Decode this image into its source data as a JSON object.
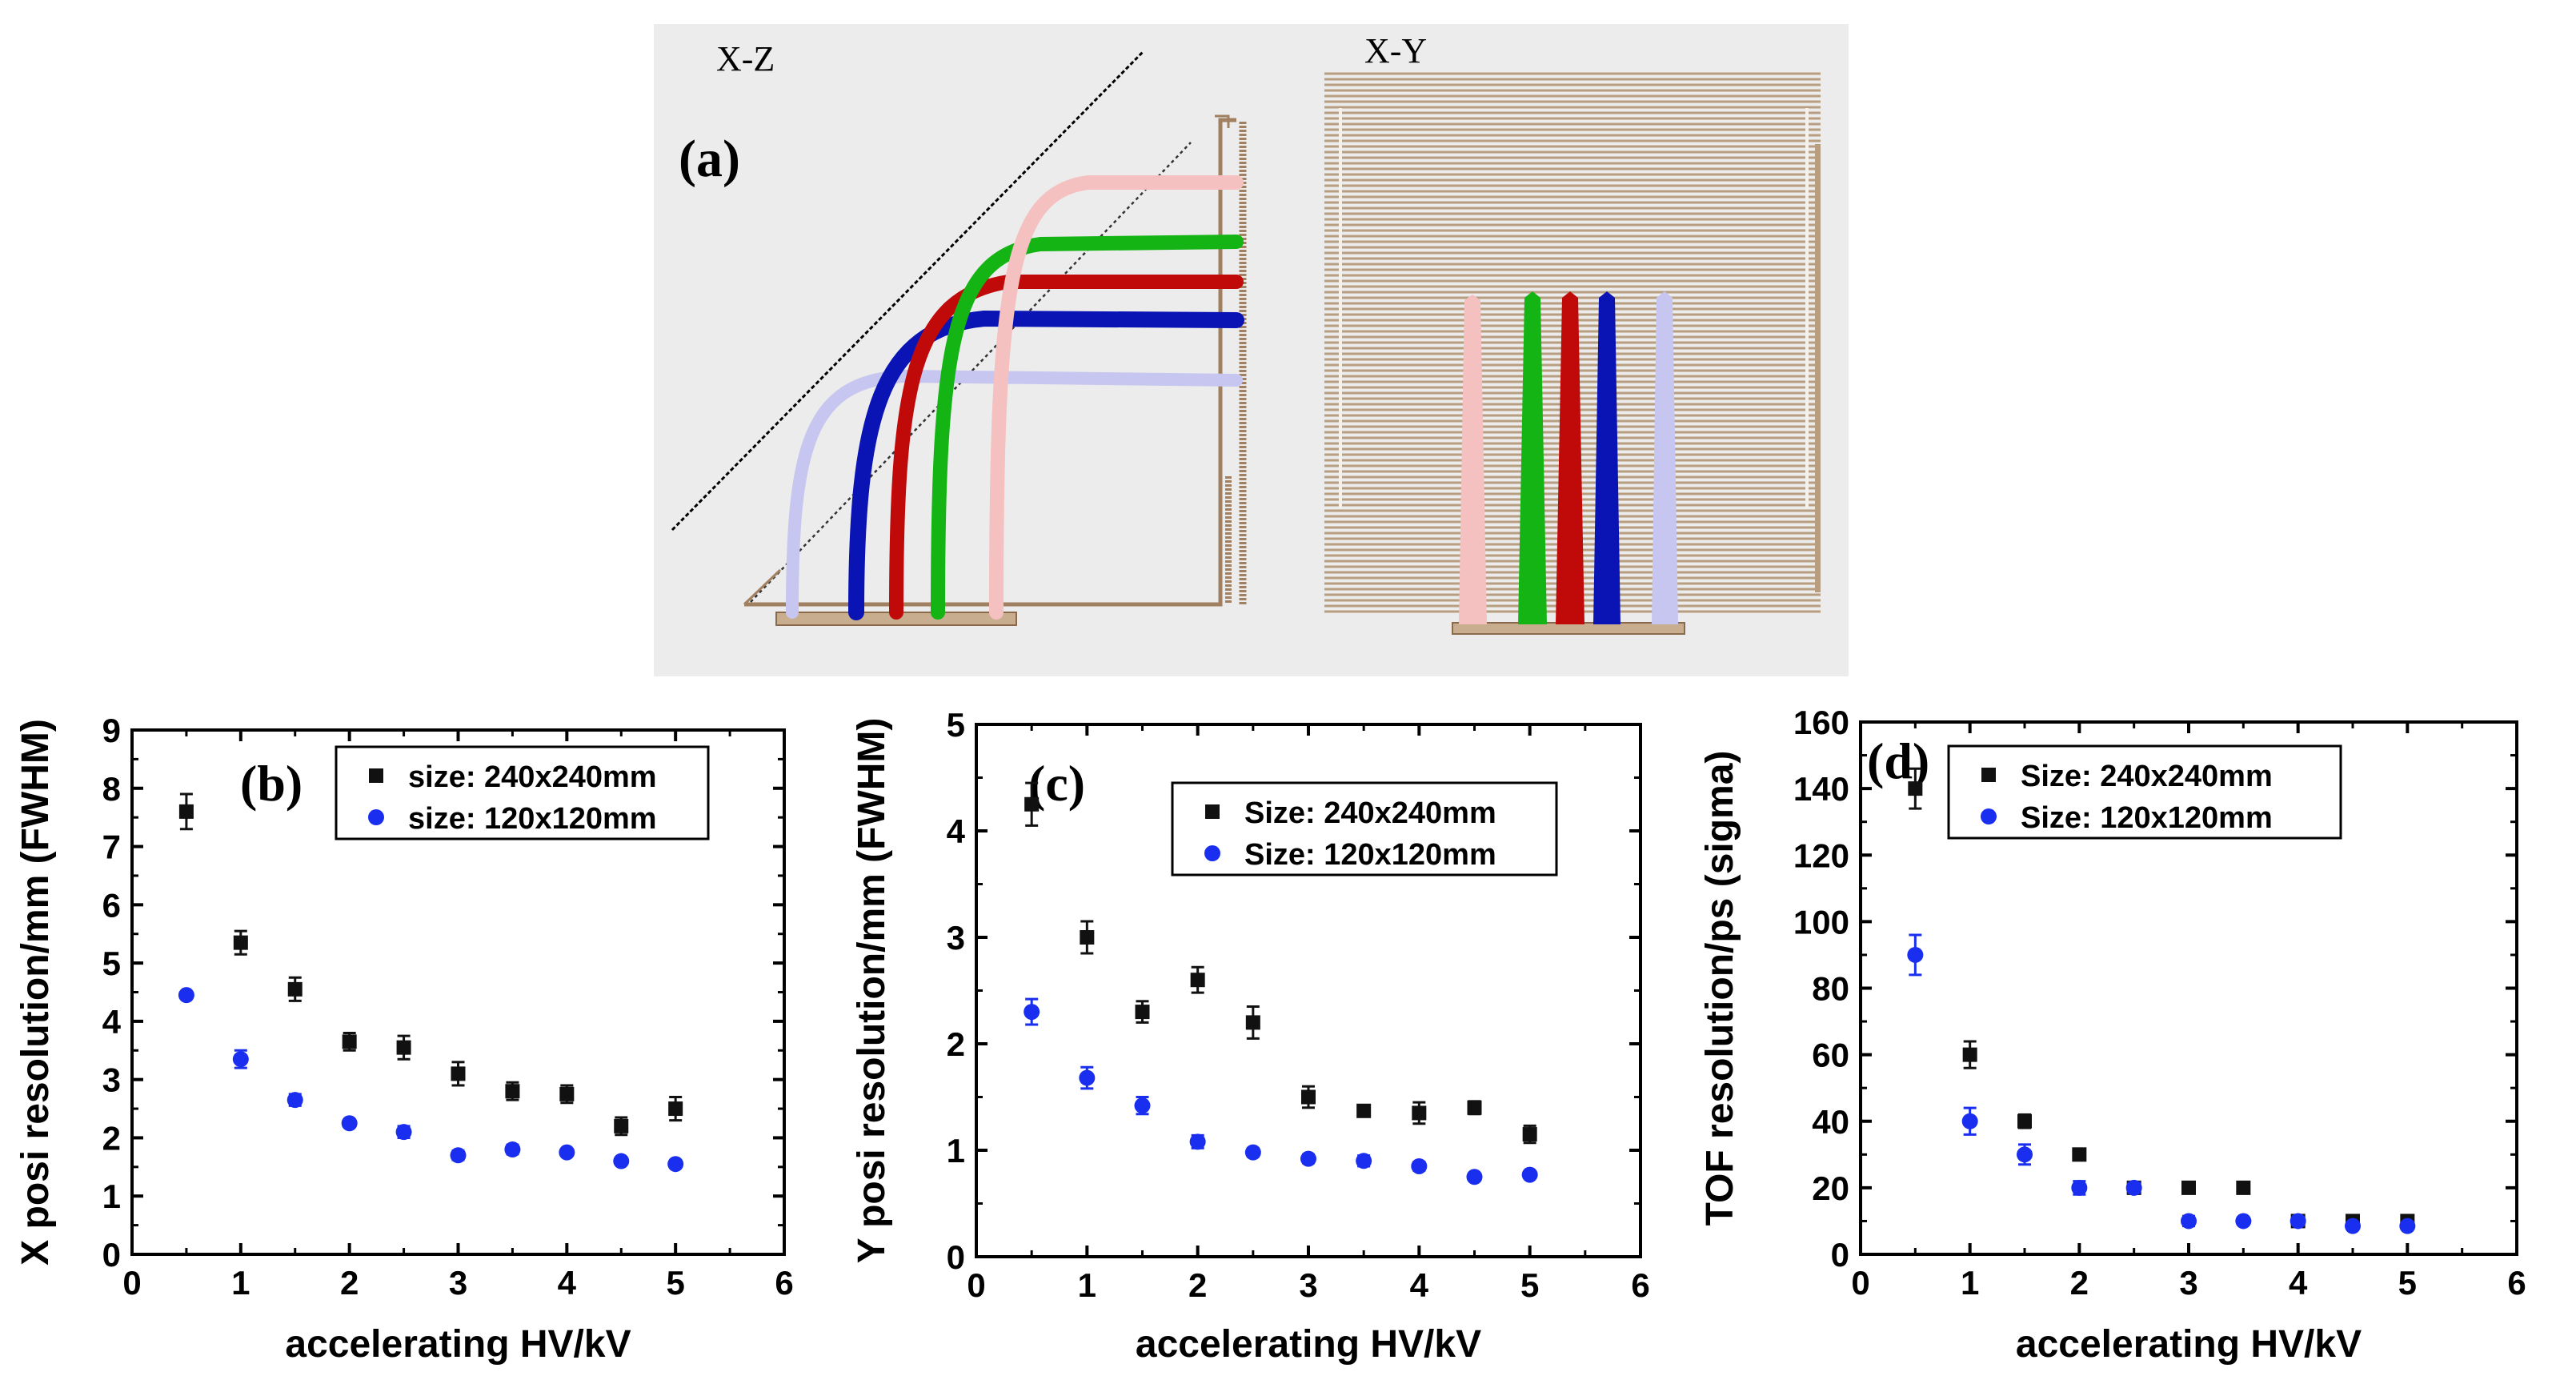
{
  "figure_a": {
    "panel_label": "(a)",
    "left_view_label": "X-Z",
    "right_view_label": "X-Y",
    "trajectory_colors": [
      "#c6c6f0",
      "#0a14b4",
      "#c00a0a",
      "#14b414",
      "#f4c0c0"
    ],
    "frame_color": "#a08060"
  },
  "chart_data": [
    {
      "id": "b",
      "type": "scatter",
      "panel_label": "(b)",
      "xlabel": "accelerating HV/kV",
      "ylabel": "X posi resolution/mm (FWHM)",
      "xlim": [
        0,
        6
      ],
      "ylim": [
        0,
        9
      ],
      "xticks": [
        "0",
        "1",
        "2",
        "3",
        "4",
        "5",
        "6"
      ],
      "yticks": [
        "0",
        "1",
        "2",
        "3",
        "4",
        "5",
        "6",
        "7",
        "8",
        "9"
      ],
      "legend_position": "top-right",
      "series": [
        {
          "name": "size: 240x240mm",
          "color": "#111111",
          "marker": "square",
          "x": [
            0.5,
            1.0,
            1.5,
            2.0,
            2.5,
            3.0,
            3.5,
            4.0,
            4.5,
            5.0
          ],
          "y": [
            7.6,
            5.35,
            4.55,
            3.65,
            3.55,
            3.1,
            2.8,
            2.75,
            2.2,
            2.5
          ],
          "err": [
            0.3,
            0.2,
            0.2,
            0.15,
            0.2,
            0.2,
            0.15,
            0.15,
            0.15,
            0.2
          ]
        },
        {
          "name": "size: 120x120mm",
          "color": "#1a2ef0",
          "marker": "circle",
          "x": [
            0.5,
            1.0,
            1.5,
            2.0,
            2.5,
            3.0,
            3.5,
            4.0,
            4.5,
            5.0
          ],
          "y": [
            4.45,
            3.35,
            2.65,
            2.25,
            2.1,
            1.7,
            1.8,
            1.75,
            1.6,
            1.55
          ],
          "err": [
            0.05,
            0.15,
            0.1,
            0.05,
            0.1,
            0.08,
            0.08,
            0.06,
            0.05,
            0.05
          ]
        }
      ]
    },
    {
      "id": "c",
      "type": "scatter",
      "panel_label": "(c)",
      "xlabel": "accelerating HV/kV",
      "ylabel": "Y posi resolution/mm (FWHM)",
      "xlim": [
        0,
        6
      ],
      "ylim": [
        0,
        5
      ],
      "xticks": [
        "0",
        "1",
        "2",
        "3",
        "4",
        "5",
        "6"
      ],
      "yticks": [
        "0",
        "1",
        "2",
        "3",
        "4",
        "5"
      ],
      "legend_position": "top-right",
      "series": [
        {
          "name": "Size: 240x240mm",
          "color": "#111111",
          "marker": "square",
          "x": [
            0.5,
            1.0,
            1.5,
            2.0,
            2.5,
            3.0,
            3.5,
            4.0,
            4.5,
            5.0
          ],
          "y": [
            4.25,
            3.0,
            2.3,
            2.6,
            2.2,
            1.5,
            1.37,
            1.35,
            1.4,
            1.15
          ],
          "err": [
            0.2,
            0.15,
            0.1,
            0.12,
            0.15,
            0.1,
            0.04,
            0.1,
            0.06,
            0.08
          ]
        },
        {
          "name": "Size: 120x120mm",
          "color": "#1a2ef0",
          "marker": "circle",
          "x": [
            0.5,
            1.0,
            1.5,
            2.0,
            2.5,
            3.0,
            3.5,
            4.0,
            4.5,
            5.0
          ],
          "y": [
            2.3,
            1.68,
            1.42,
            1.08,
            0.98,
            0.92,
            0.9,
            0.85,
            0.75,
            0.77
          ],
          "err": [
            0.12,
            0.1,
            0.08,
            0.06,
            0.04,
            0.04,
            0.05,
            0.04,
            0.03,
            0.03
          ]
        }
      ]
    },
    {
      "id": "d",
      "type": "scatter",
      "panel_label": "(d)",
      "xlabel": "accelerating HV/kV",
      "ylabel": "TOF resolution/ps (sigma)",
      "xlim": [
        0,
        6
      ],
      "ylim": [
        0,
        160
      ],
      "xticks": [
        "0",
        "1",
        "2",
        "3",
        "4",
        "5",
        "6"
      ],
      "yticks": [
        "0",
        "20",
        "40",
        "60",
        "80",
        "100",
        "120",
        "140",
        "160"
      ],
      "legend_position": "top-right",
      "series": [
        {
          "name": "Size: 240x240mm",
          "color": "#111111",
          "marker": "square",
          "x": [
            0.5,
            1.0,
            1.5,
            2.0,
            2.5,
            3.0,
            3.5,
            4.0,
            4.5,
            5.0
          ],
          "y": [
            140,
            60,
            40,
            30,
            20,
            20,
            20,
            10,
            10,
            10
          ],
          "err": [
            6,
            4,
            2,
            1.5,
            1.5,
            1,
            1,
            1,
            1,
            1
          ]
        },
        {
          "name": "Size: 120x120mm",
          "color": "#1a2ef0",
          "marker": "circle",
          "x": [
            0.5,
            1.0,
            1.5,
            2.0,
            2.5,
            3.0,
            3.5,
            4.0,
            4.5,
            5.0
          ],
          "y": [
            90,
            40,
            30,
            20,
            20,
            10,
            10,
            10,
            8.5,
            8.5
          ],
          "err": [
            6,
            4,
            3,
            2,
            1.5,
            1.5,
            1,
            1,
            1,
            1
          ]
        }
      ]
    }
  ]
}
